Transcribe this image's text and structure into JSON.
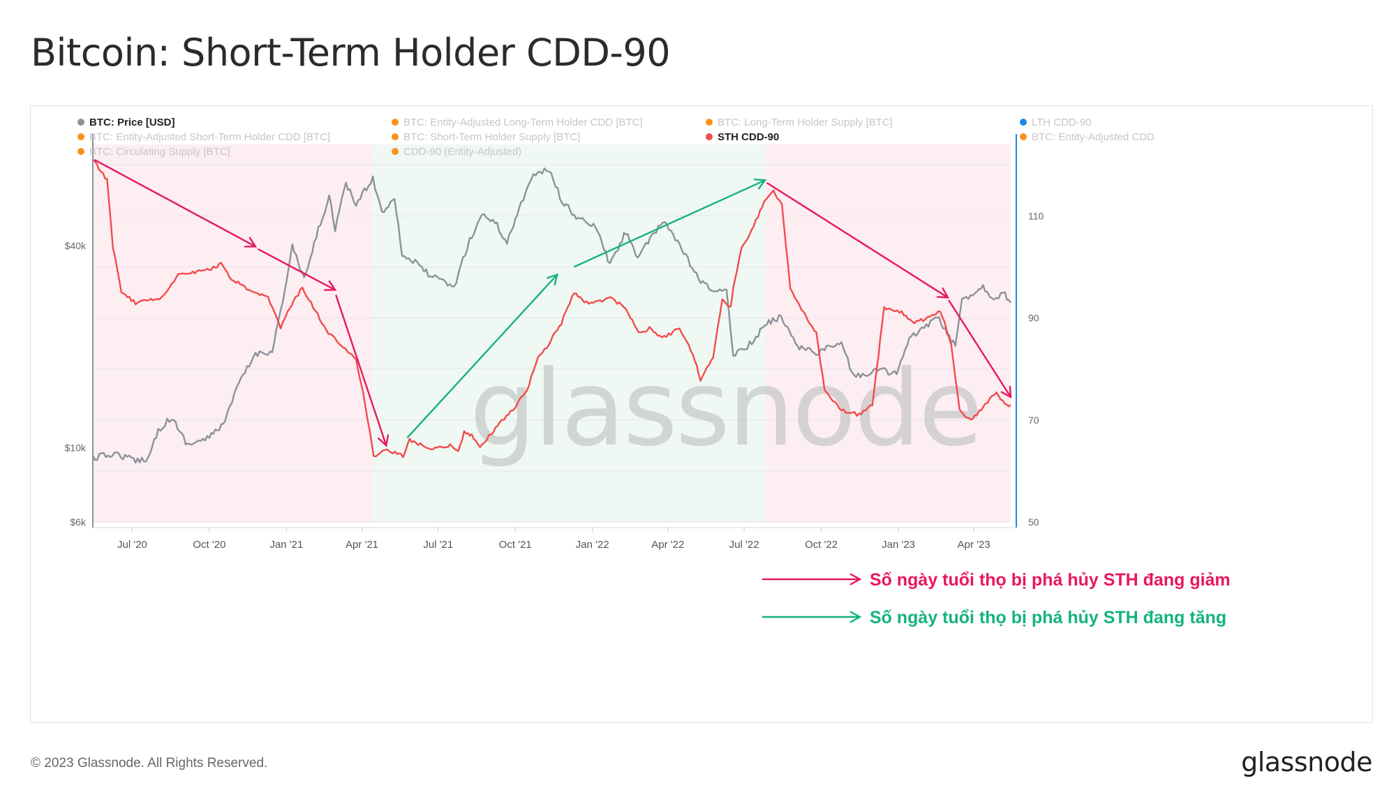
{
  "title": "Bitcoin: Short-Term Holder CDD-90",
  "footer": {
    "copyright": "© 2023 Glassnode. All Rights Reserved.",
    "logo_text": "glassnode"
  },
  "watermark": "glassnode",
  "legend": [
    {
      "label": "BTC: Price [USD]",
      "color": "#8a9299",
      "active": true
    },
    {
      "label": "BTC: Entity-Adjusted Long-Term Holder CDD [BTC]",
      "color": "#f7931a",
      "active": false
    },
    {
      "label": "BTC: Long-Term Holder Supply [BTC]",
      "color": "#f7931a",
      "active": false
    },
    {
      "label": "LTH CDD-90",
      "color": "#1e88e5",
      "active": false
    },
    {
      "label": "BTC: Entity-Adjusted Short-Term Holder CDD [BTC]",
      "color": "#f7931a",
      "active": false
    },
    {
      "label": "BTC: Short-Term Holder Supply [BTC]",
      "color": "#f7931a",
      "active": false
    },
    {
      "label": "STH CDD-90",
      "color": "#f24b4b",
      "active": true
    },
    {
      "label": "BTC: Entity-Adjusted CDD",
      "color": "#f7931a",
      "active": false
    },
    {
      "label": "BTC: Circulating Supply [BTC]",
      "color": "#f7931a",
      "active": false
    },
    {
      "label": "CDD-90 (Entity-Adjusted)",
      "color": "#f7931a",
      "active": false
    }
  ],
  "annotations": {
    "decreasing": {
      "text": "Số ngày tuổi thọ bị phá hủy STH đang giảm",
      "color": "#e8175d"
    },
    "increasing": {
      "text": "Số ngày tuổi thọ bị phá hủy STH đang tăng",
      "color": "#14b37d"
    }
  },
  "chart_data": {
    "type": "line",
    "x_ticks": [
      "Jul '20",
      "Oct '20",
      "Jan '21",
      "Apr '21",
      "Jul '21",
      "Oct '21",
      "Jan '22",
      "Apr '22",
      "Jul '22",
      "Oct '22",
      "Jan '23",
      "Apr '23"
    ],
    "y_left": {
      "scale": "log",
      "ticks": [
        "$6k",
        "$10k",
        "$40k"
      ],
      "tick_values": [
        6000,
        10000,
        40000
      ],
      "range": [
        6000,
        80000
      ]
    },
    "y_right": {
      "scale": "linear",
      "ticks": [
        "50",
        "70",
        "90",
        "110"
      ],
      "tick_values": [
        50,
        70,
        90,
        110
      ],
      "range": [
        50,
        124
      ]
    },
    "x_range": [
      "2020-05-15",
      "2023-05-15"
    ],
    "regimes": [
      {
        "start": "2020-05-15",
        "end": "2021-04-14",
        "trend": "decreasing",
        "color": "#fdeef2"
      },
      {
        "start": "2021-04-14",
        "end": "2022-07-27",
        "trend": "increasing",
        "color": "#eff8f3"
      },
      {
        "start": "2022-07-27",
        "end": "2023-05-15",
        "trend": "decreasing",
        "color": "#fdeef2"
      }
    ],
    "series": [
      {
        "name": "BTC: Price [USD]",
        "axis": "left",
        "color": "#8a9299",
        "points": [
          [
            "2020-05-15",
            9300
          ],
          [
            "2020-06-10",
            9600
          ],
          [
            "2020-07-05",
            9150
          ],
          [
            "2020-07-20",
            9300
          ],
          [
            "2020-08-01",
            11300
          ],
          [
            "2020-08-17",
            12300
          ],
          [
            "2020-09-05",
            10200
          ],
          [
            "2020-10-01",
            10700
          ],
          [
            "2020-10-20",
            12000
          ],
          [
            "2020-11-05",
            15500
          ],
          [
            "2020-11-25",
            19000
          ],
          [
            "2020-12-15",
            19400
          ],
          [
            "2020-12-22",
            23500
          ],
          [
            "2021-01-02",
            32000
          ],
          [
            "2021-01-08",
            40000
          ],
          [
            "2021-01-22",
            31500
          ],
          [
            "2021-02-08",
            44500
          ],
          [
            "2021-02-21",
            56000
          ],
          [
            "2021-02-28",
            45000
          ],
          [
            "2021-03-13",
            61000
          ],
          [
            "2021-03-25",
            53000
          ],
          [
            "2021-04-14",
            63500
          ],
          [
            "2021-04-25",
            50000
          ],
          [
            "2021-05-10",
            56000
          ],
          [
            "2021-05-19",
            37500
          ],
          [
            "2021-06-01",
            36000
          ],
          [
            "2021-06-22",
            32500
          ],
          [
            "2021-07-20",
            30000
          ],
          [
            "2021-08-05",
            40000
          ],
          [
            "2021-08-22",
            49500
          ],
          [
            "2021-09-07",
            47000
          ],
          [
            "2021-09-21",
            40700
          ],
          [
            "2021-10-01",
            48000
          ],
          [
            "2021-10-20",
            64000
          ],
          [
            "2021-11-10",
            67500
          ],
          [
            "2021-11-26",
            54000
          ],
          [
            "2021-12-15",
            48000
          ],
          [
            "2022-01-05",
            45500
          ],
          [
            "2022-01-22",
            35000
          ],
          [
            "2022-02-10",
            44000
          ],
          [
            "2022-02-24",
            37000
          ],
          [
            "2022-03-28",
            47500
          ],
          [
            "2022-04-15",
            40000
          ],
          [
            "2022-05-10",
            31000
          ],
          [
            "2022-05-25",
            29500
          ],
          [
            "2022-06-10",
            29000
          ],
          [
            "2022-06-18",
            19000
          ],
          [
            "2022-07-10",
            20500
          ],
          [
            "2022-07-28",
            23500
          ],
          [
            "2022-08-14",
            24500
          ],
          [
            "2022-09-05",
            19900
          ],
          [
            "2022-09-25",
            19200
          ],
          [
            "2022-10-25",
            20500
          ],
          [
            "2022-11-09",
            16200
          ],
          [
            "2022-12-10",
            17100
          ],
          [
            "2022-12-30",
            16600
          ],
          [
            "2023-01-14",
            21000
          ],
          [
            "2023-02-16",
            24500
          ],
          [
            "2023-03-10",
            20000
          ],
          [
            "2023-03-18",
            27500
          ],
          [
            "2023-04-12",
            30200
          ],
          [
            "2023-04-25",
            27800
          ],
          [
            "2023-05-06",
            29000
          ],
          [
            "2023-05-15",
            27000
          ]
        ]
      },
      {
        "name": "STH CDD-90",
        "axis": "right",
        "color": "#f24b4b",
        "points": [
          [
            "2020-05-15",
            121
          ],
          [
            "2020-06-01",
            117
          ],
          [
            "2020-06-08",
            104
          ],
          [
            "2020-06-18",
            95
          ],
          [
            "2020-07-05",
            93
          ],
          [
            "2020-08-05",
            94
          ],
          [
            "2020-08-25",
            98.5
          ],
          [
            "2020-10-01",
            99.5
          ],
          [
            "2020-10-15",
            100.5
          ],
          [
            "2020-10-25",
            98
          ],
          [
            "2020-11-20",
            95
          ],
          [
            "2020-12-10",
            94
          ],
          [
            "2020-12-25",
            88
          ],
          [
            "2021-01-05",
            92
          ],
          [
            "2021-01-20",
            96
          ],
          [
            "2021-02-02",
            92
          ],
          [
            "2021-02-20",
            87
          ],
          [
            "2021-03-25",
            82
          ],
          [
            "2021-04-05",
            73
          ],
          [
            "2021-04-15",
            63
          ],
          [
            "2021-05-01",
            64
          ],
          [
            "2021-05-20",
            63
          ],
          [
            "2021-05-28",
            66
          ],
          [
            "2021-06-20",
            64.5
          ],
          [
            "2021-07-15",
            65
          ],
          [
            "2021-07-25",
            64
          ],
          [
            "2021-08-01",
            67.5
          ],
          [
            "2021-08-10",
            67
          ],
          [
            "2021-08-20",
            64.5
          ],
          [
            "2021-09-10",
            69
          ],
          [
            "2021-09-28",
            72
          ],
          [
            "2021-10-15",
            76
          ],
          [
            "2021-10-28",
            82
          ],
          [
            "2021-11-10",
            85
          ],
          [
            "2021-11-25",
            89
          ],
          [
            "2021-12-10",
            95
          ],
          [
            "2021-12-25",
            93
          ],
          [
            "2022-01-05",
            93
          ],
          [
            "2022-01-20",
            94
          ],
          [
            "2022-02-10",
            92
          ],
          [
            "2022-02-25",
            87
          ],
          [
            "2022-03-10",
            88
          ],
          [
            "2022-03-25",
            86
          ],
          [
            "2022-04-15",
            88
          ],
          [
            "2022-05-01",
            83
          ],
          [
            "2022-05-10",
            78
          ],
          [
            "2022-05-25",
            82
          ],
          [
            "2022-06-05",
            94
          ],
          [
            "2022-06-15",
            92
          ],
          [
            "2022-06-18",
            96
          ],
          [
            "2022-06-28",
            104
          ],
          [
            "2022-07-10",
            107
          ],
          [
            "2022-07-25",
            113
          ],
          [
            "2022-08-05",
            115
          ],
          [
            "2022-08-15",
            112
          ],
          [
            "2022-08-25",
            96
          ],
          [
            "2022-09-10",
            91
          ],
          [
            "2022-09-25",
            87
          ],
          [
            "2022-10-05",
            76
          ],
          [
            "2022-10-25",
            72
          ],
          [
            "2022-11-15",
            71
          ],
          [
            "2022-12-01",
            73
          ],
          [
            "2022-12-15",
            92
          ],
          [
            "2023-01-05",
            91
          ],
          [
            "2023-01-20",
            89
          ],
          [
            "2023-02-05",
            90
          ],
          [
            "2023-02-20",
            91.5
          ],
          [
            "2023-03-05",
            85
          ],
          [
            "2023-03-15",
            72
          ],
          [
            "2023-03-28",
            70
          ],
          [
            "2023-04-15",
            73
          ],
          [
            "2023-04-28",
            75.5
          ],
          [
            "2023-05-08",
            73
          ],
          [
            "2023-05-15",
            73
          ]
        ]
      }
    ],
    "trend_arrows": [
      {
        "trend": "decreasing",
        "from": [
          "2020-05-17",
          121
        ],
        "to": [
          "2020-11-25",
          104
        ]
      },
      {
        "trend": "decreasing",
        "from": [
          "2020-11-28",
          103.5
        ],
        "to": [
          "2021-02-28",
          95.5
        ]
      },
      {
        "trend": "decreasing",
        "from": [
          "2021-03-01",
          94.5
        ],
        "to": [
          "2021-04-30",
          65
        ]
      },
      {
        "trend": "increasing",
        "from": [
          "2021-05-25",
          66.5
        ],
        "to": [
          "2021-11-20",
          98.5
        ]
      },
      {
        "trend": "increasing",
        "from": [
          "2021-12-10",
          100
        ],
        "to": [
          "2022-07-26",
          117
        ]
      },
      {
        "trend": "decreasing",
        "from": [
          "2022-07-28",
          116.5
        ],
        "to": [
          "2023-03-01",
          94
        ]
      },
      {
        "trend": "decreasing",
        "from": [
          "2023-03-02",
          93.5
        ],
        "to": [
          "2023-05-15",
          74.5
        ]
      }
    ],
    "grid": true,
    "legend_position": "top-left"
  }
}
